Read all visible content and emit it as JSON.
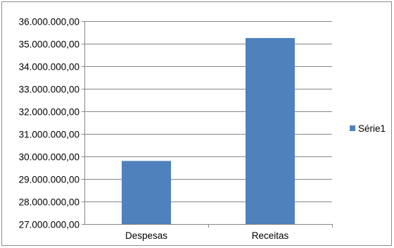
{
  "chart_data": {
    "type": "bar",
    "categories": [
      "Despesas",
      "Receitas"
    ],
    "series": [
      {
        "name": "Série1",
        "values": [
          29800000,
          35250000
        ]
      }
    ],
    "y_ticks": [
      "27.000.000,00",
      "28.000.000,00",
      "29.000.000,00",
      "30.000.000,00",
      "31.000.000,00",
      "32.000.000,00",
      "33.000.000,00",
      "34.000.000,00",
      "35.000.000,00",
      "36.000.000,00"
    ],
    "ylim": [
      27000000,
      36000000
    ],
    "y_step": 1000000,
    "grid": true,
    "legend": "right",
    "colors": {
      "bar": "#4f81bd",
      "grid": "#878787",
      "axis": "#878787"
    }
  }
}
